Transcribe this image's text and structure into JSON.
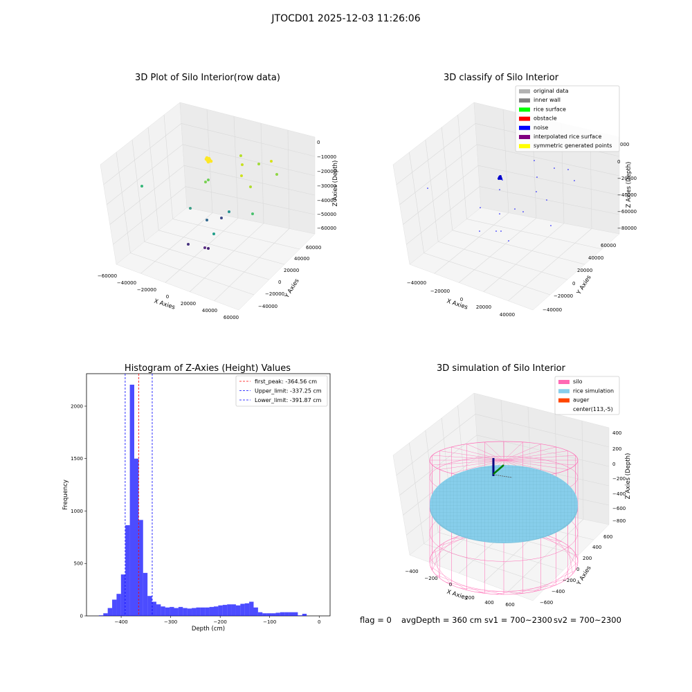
{
  "figure": {
    "title": "JTOCD01 2025-12-03 11:26:06",
    "footer": {
      "flag": "flag = 0",
      "avg_depth": "avgDepth = 360 cm",
      "sv1": "sv1 = 700~2300",
      "sv2": "sv2 = 700~2300"
    }
  },
  "chart_data": [
    {
      "type": "scatter",
      "subtype": "3d",
      "title": "3D Plot of Silo Interior(row data)",
      "xlabel": "X Axies",
      "ylabel": "Y Axies",
      "zlabel": "Z Axies (Depth)",
      "x_ticks": [
        "−60000",
        "−40000",
        "−20000",
        "0",
        "20000",
        "40000",
        "60000"
      ],
      "y_ticks": [
        "−40000",
        "−20000",
        "0",
        "20000",
        "40000",
        "60000"
      ],
      "z_ticks": [
        "0",
        "−10000",
        "−20000",
        "−30000",
        "−40000",
        "−50000",
        "−60000"
      ],
      "xlim": [
        -60000,
        60000
      ],
      "ylim": [
        -45000,
        65000
      ],
      "zlim": [
        -65000,
        5000
      ],
      "colormap": "viridis (by depth)"
    },
    {
      "type": "scatter",
      "subtype": "3d",
      "title": "3D classify of Silo Interior",
      "xlabel": "X Axies",
      "ylabel": "Y Axies",
      "zlabel": "Z Axies (Depth)",
      "x_ticks": [
        "−40000",
        "−20000",
        "0",
        "20000",
        "40000"
      ],
      "y_ticks": [
        "−40000",
        "−20000",
        "0",
        "20000",
        "40000",
        "60000"
      ],
      "z_ticks": [
        "0",
        "−20000",
        "−40000",
        "−60000",
        "−80000"
      ],
      "legend_placement": "top-right",
      "legend": [
        {
          "label": "original data",
          "color": "#b3b3b3"
        },
        {
          "label": "inner wall",
          "color": "#808080"
        },
        {
          "label": "rice surface",
          "color": "#00ff00"
        },
        {
          "label": "obstacle",
          "color": "#ff0000"
        },
        {
          "label": "noise",
          "color": "#0000ff"
        },
        {
          "label": "interpolated rice surface",
          "color": "#800080"
        },
        {
          "label": "symmetric generated points",
          "color": "#ffff00"
        }
      ],
      "z_top_partial_label": "000"
    },
    {
      "type": "bar",
      "subtype": "histogram",
      "title": "Histogram of Z-Axies (Height) Values",
      "xlabel": "Depth (cm)",
      "ylabel": "Frequency",
      "xlim": [
        -470,
        22
      ],
      "ylim": [
        0,
        2310
      ],
      "x_ticks": [
        -400,
        -300,
        -200,
        -100,
        0
      ],
      "x_tick_labels": [
        "−400",
        "−300",
        "−200",
        "−100",
        "0"
      ],
      "y_ticks": [
        0,
        500,
        1000,
        1500,
        2000
      ],
      "bin_width": 8.93,
      "bin_start": -445.0,
      "values": [
        5,
        25,
        75,
        155,
        210,
        395,
        865,
        2205,
        1500,
        915,
        410,
        190,
        135,
        110,
        90,
        80,
        85,
        75,
        85,
        75,
        70,
        75,
        80,
        80,
        80,
        85,
        90,
        100,
        105,
        110,
        110,
        100,
        115,
        120,
        135,
        80,
        35,
        25,
        25,
        25,
        30,
        35,
        35,
        35,
        35,
        5,
        20
      ],
      "bar_color": "#0000ff",
      "bar_opacity": 0.7,
      "lines": [
        {
          "label": "first_peak: -364.56 cm",
          "x": -364.56,
          "color": "#ff0000"
        },
        {
          "label": "Upper_limit: -337.25 cm",
          "x": -337.25,
          "color": "#0000ff"
        },
        {
          "label": "Lower_limit: -391.87 cm",
          "x": -391.87,
          "color": "#0000ff"
        }
      ],
      "legend_placement": "top-right"
    },
    {
      "type": "surface",
      "subtype": "3d",
      "title": "3D simulation of Silo Interior",
      "xlabel": "X Axies",
      "ylabel": "Y Axies",
      "zlabel": "Z Axies (Depth)",
      "x_ticks": [
        "−400",
        "−200",
        "0",
        "200",
        "400",
        "600"
      ],
      "y_ticks": [
        "−600",
        "−400",
        "−200",
        "0",
        "200",
        "400",
        "600"
      ],
      "z_ticks": [
        "400",
        "200",
        "0",
        "−200",
        "−400",
        "−600",
        "−800"
      ],
      "legend_placement": "top-right",
      "legend": [
        {
          "label": "silo",
          "color": "#ff69b4"
        },
        {
          "label": "rice simulation",
          "color": "#87ceeb"
        },
        {
          "label": "auger",
          "color": "#ff4500"
        },
        {
          "label": "center(113,-5)",
          "color": "none"
        }
      ]
    }
  ]
}
